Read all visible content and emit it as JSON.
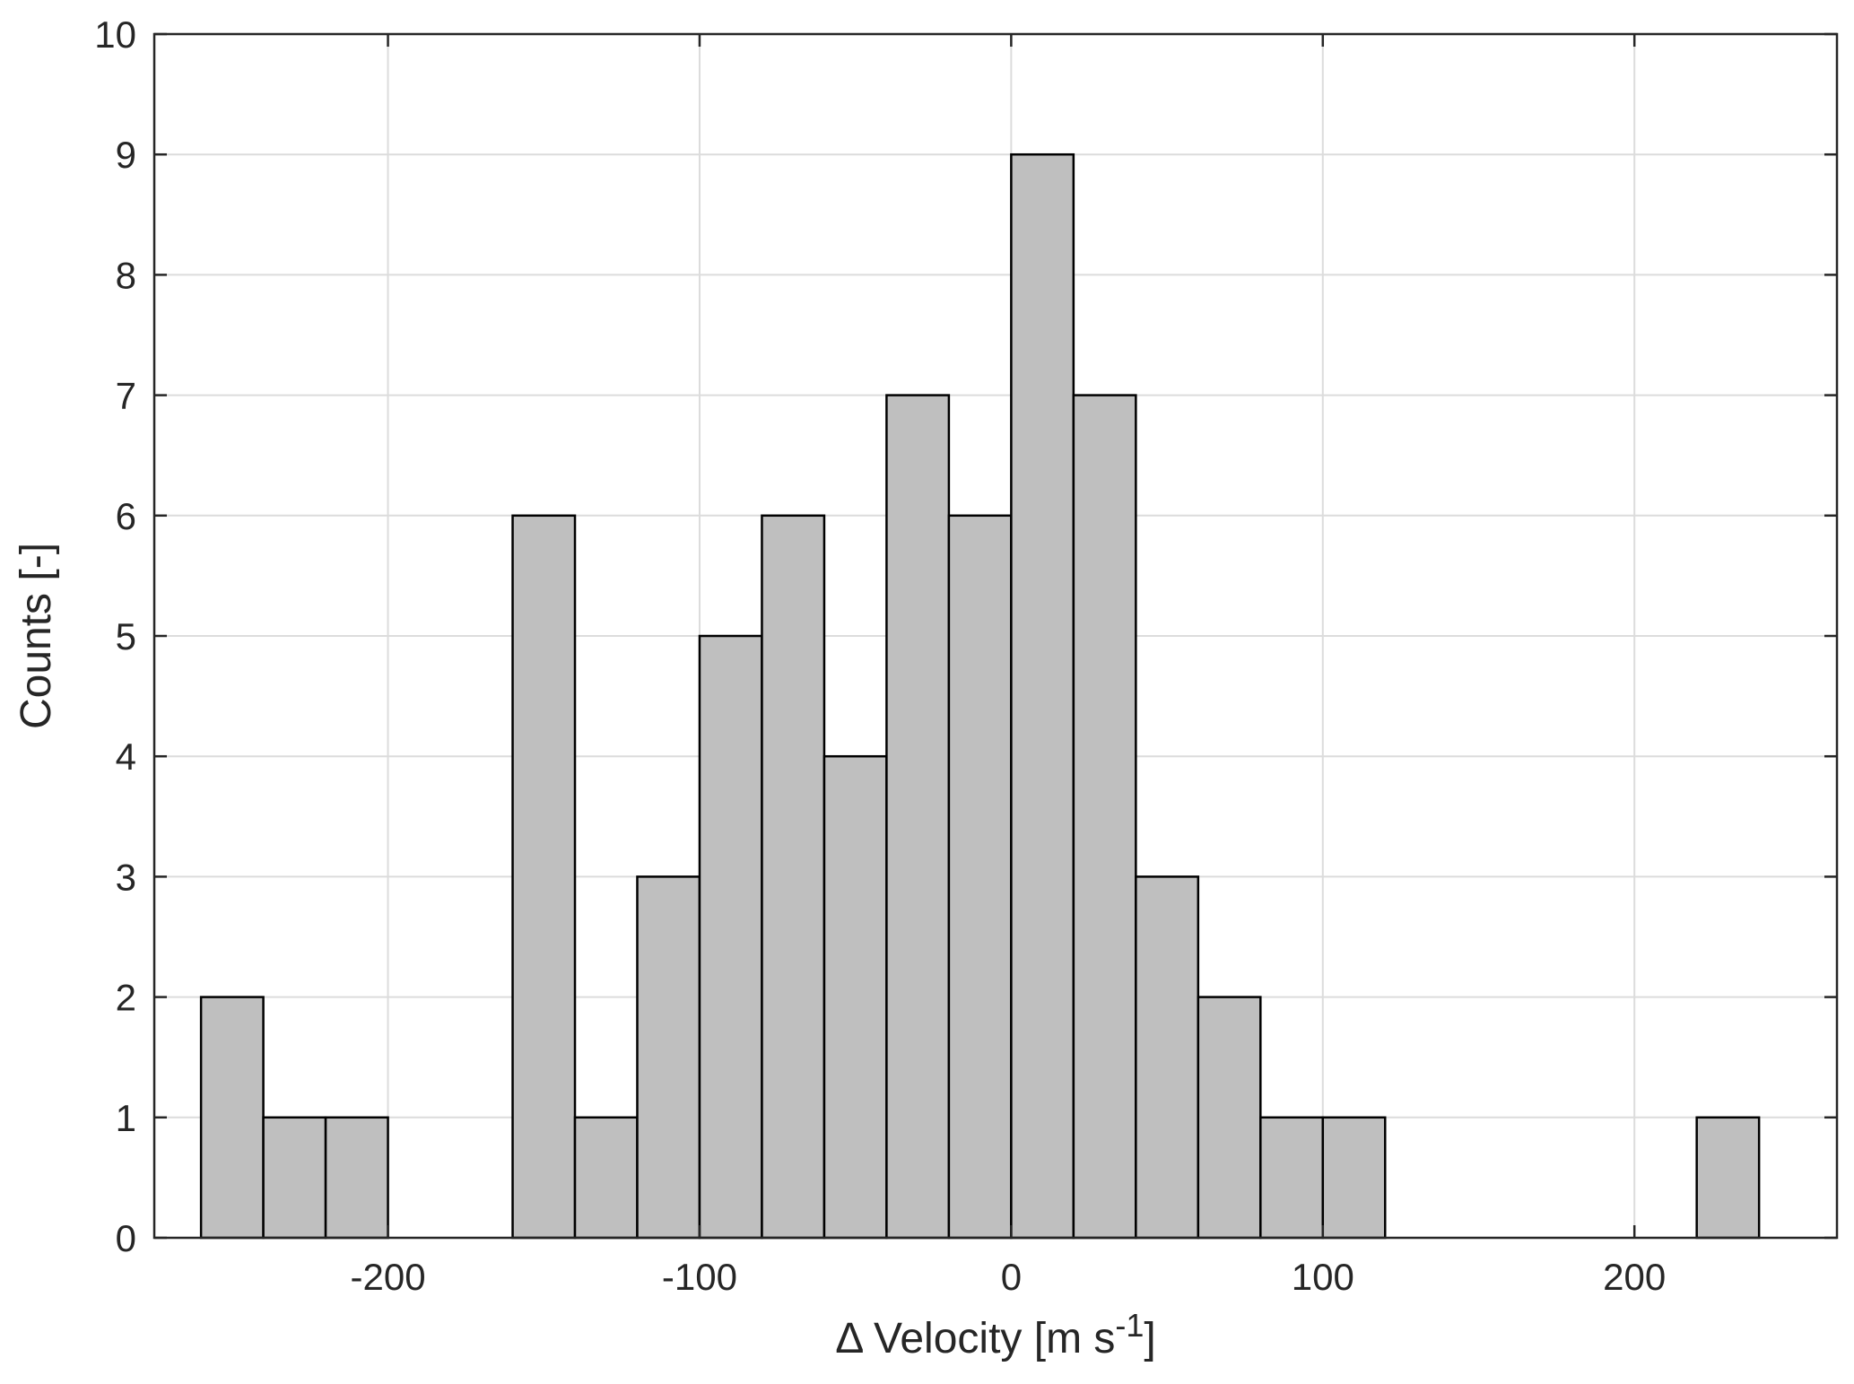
{
  "chart_data": {
    "type": "bar",
    "subtype": "histogram",
    "xlabel": {
      "prefix": "Δ Velocity [m s",
      "superscript": "-1",
      "suffix": "]"
    },
    "ylabel": "Counts [-]",
    "xlim": [
      -275,
      265
    ],
    "ylim": [
      0,
      10
    ],
    "xticks": [
      -200,
      -100,
      0,
      100,
      200
    ],
    "xtick_labels": [
      "-200",
      "-100",
      "0",
      "100",
      "200"
    ],
    "yticks": [
      0,
      1,
      2,
      3,
      4,
      5,
      6,
      7,
      8,
      9,
      10
    ],
    "ytick_labels": [
      "0",
      "1",
      "2",
      "3",
      "4",
      "5",
      "6",
      "7",
      "8",
      "9",
      "10"
    ],
    "grid": true,
    "bin_width": 20,
    "bin_edges": [
      -260,
      -240,
      -220,
      -200,
      -180,
      -160,
      -140,
      -120,
      -100,
      -80,
      -60,
      -40,
      -20,
      0,
      20,
      40,
      60,
      80,
      100,
      120,
      140,
      160,
      180,
      200,
      220,
      240
    ],
    "values": [
      2,
      1,
      1,
      0,
      0,
      6,
      1,
      3,
      5,
      6,
      4,
      7,
      6,
      9,
      7,
      3,
      2,
      1,
      1,
      0,
      0,
      0,
      0,
      0,
      1
    ],
    "bar_color": "#bfbfbf",
    "edge_color": "#000000"
  }
}
